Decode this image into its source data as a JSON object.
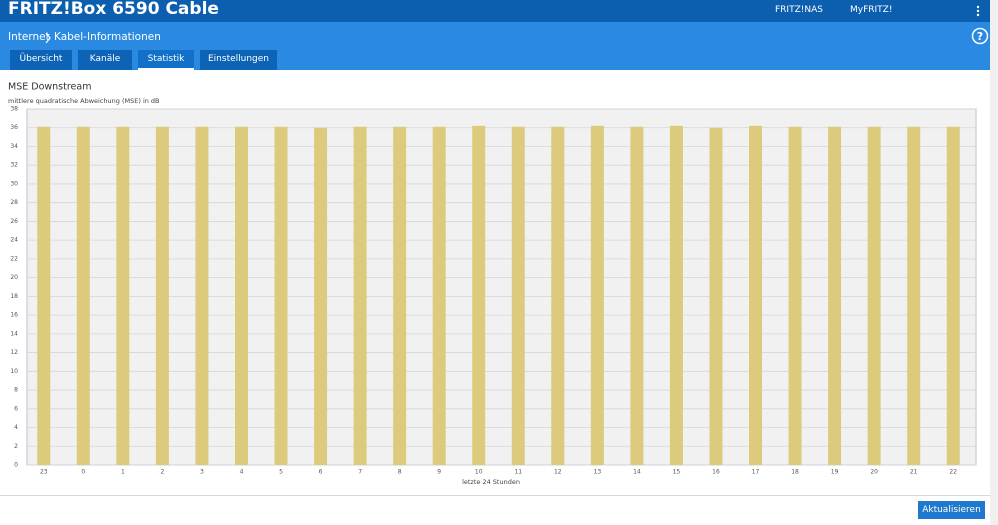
{
  "header": {
    "title": "FRITZ!Box 6590 Cable",
    "links": [
      "FRITZ!NAS",
      "MyFRITZ!"
    ]
  },
  "breadcrumb": [
    "Internet",
    "Kabel-Informationen"
  ],
  "help": "?",
  "tabs": [
    "Übersicht",
    "Kanäle",
    "Statistik",
    "Einstellungen"
  ],
  "active_tab": 2,
  "chart_data": {
    "type": "bar",
    "title": "MSE Downstream",
    "subtitle": "mittlere quadratische Abweichung (MSE) in dB",
    "x_label": "letzte 24 Stunden",
    "categories": [
      "23",
      "0",
      "1",
      "2",
      "3",
      "4",
      "5",
      "6",
      "7",
      "8",
      "9",
      "10",
      "11",
      "12",
      "13",
      "14",
      "15",
      "16",
      "17",
      "18",
      "19",
      "20",
      "21",
      "22"
    ],
    "values": [
      36.1,
      36.1,
      36.1,
      36.1,
      36.1,
      36.1,
      36.1,
      36.0,
      36.1,
      36.1,
      36.1,
      36.2,
      36.1,
      36.1,
      36.2,
      36.1,
      36.2,
      36.0,
      36.2,
      36.1,
      36.1,
      36.1,
      36.1,
      36.1
    ],
    "color": "#dccb7c",
    "ylim": [
      0,
      38
    ],
    "yticks": [
      0,
      2,
      4,
      6,
      8,
      10,
      12,
      14,
      16,
      18,
      20,
      22,
      24,
      26,
      28,
      30,
      32,
      34,
      36,
      38
    ],
    "grid": true
  },
  "button": "Aktualisieren"
}
